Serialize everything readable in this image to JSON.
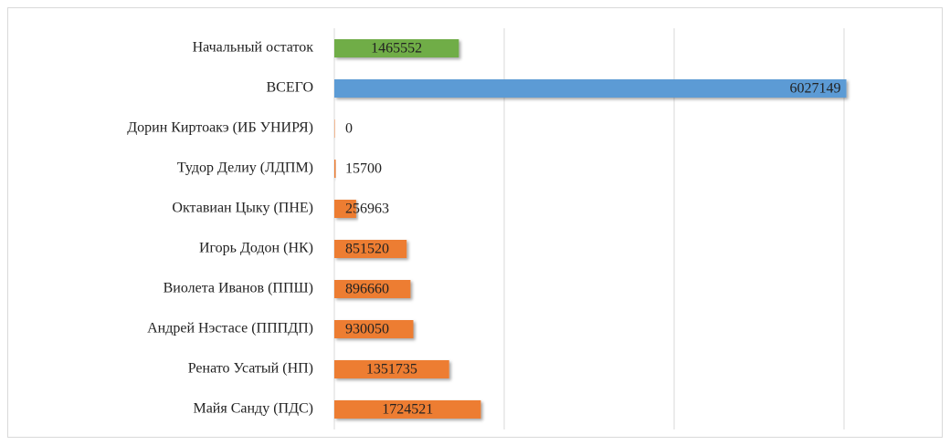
{
  "chart_data": {
    "type": "barh",
    "categories": [
      "Начальный остаток",
      "ВСЕГО",
      "Дорин Киртоакэ (ИБ УНИРЯ)",
      "Тудор Делиу (ЛДПМ)",
      "Октавиан Цыку (ПНЕ)",
      "Игорь Додон (НК)",
      "Виолета Иванов (ППШ)",
      "Андрей Нэстасе (ПППДП)",
      "Ренато Усатый (НП)",
      "Майя Санду (ПДС)"
    ],
    "values": [
      1465552,
      6027149,
      0,
      15700,
      256963,
      851520,
      896660,
      930050,
      1351735,
      1724521
    ],
    "colors": [
      "#70ad47",
      "#5b9bd5",
      "#ed7d31",
      "#ed7d31",
      "#ed7d31",
      "#ed7d31",
      "#ed7d31",
      "#ed7d31",
      "#ed7d31",
      "#ed7d31"
    ],
    "xlim": [
      0,
      7000000
    ],
    "xticks": [
      0,
      2000000,
      4000000,
      6000000
    ],
    "grid": true
  }
}
